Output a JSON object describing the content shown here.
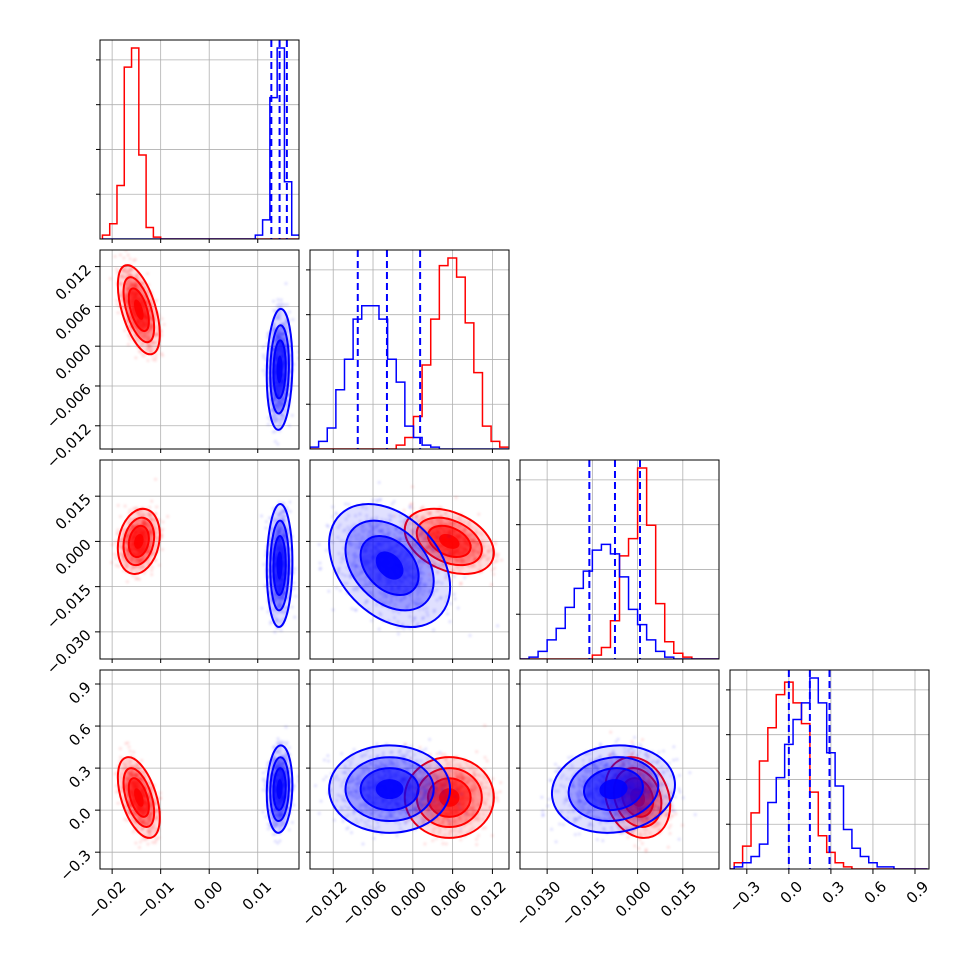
{
  "chart_data": {
    "type": "corner",
    "title": "",
    "grid": true,
    "series": [
      {
        "name": "",
        "color": "#ff0000",
        "means": [
          -0.0145,
          0.0055,
          0.0,
          0.09
        ],
        "sds": [
          0.0018,
          0.0028,
          0.0045,
          0.12
        ],
        "corr": [
          [
            0,
            1,
            -0.55
          ],
          [
            0,
            2,
            0.2
          ],
          [
            0,
            3,
            -0.5
          ],
          [
            1,
            2,
            -0.35
          ],
          [
            2,
            3,
            -0.2
          ]
        ]
      },
      {
        "name": "",
        "color": "#0000ff",
        "means": [
          0.0145,
          -0.0035,
          -0.008,
          0.15
        ],
        "sds": [
          0.0011,
          0.0038,
          0.0085,
          0.13
        ],
        "corr": [
          [
            0,
            1,
            0.1
          ],
          [
            0,
            2,
            0.05
          ],
          [
            0,
            3,
            0.1
          ],
          [
            1,
            2,
            -0.35
          ],
          [
            2,
            3,
            0.1
          ]
        ]
      }
    ],
    "quantiles": {
      "color": "#0000ff",
      "values": [
        [
          0.0128,
          0.0145,
          0.016
        ],
        [
          -0.0083,
          -0.0039,
          0.0011
        ],
        [
          -0.016,
          -0.0075,
          0.0008
        ],
        [
          0.0,
          0.15,
          0.29
        ]
      ]
    },
    "histograms": [
      {
        "edges": [
          -0.022,
          -0.0205,
          -0.019,
          -0.0175,
          -0.016,
          -0.0145,
          -0.013,
          -0.0115,
          -0.01,
          -0.0085,
          -0.007,
          -0.0055,
          -0.004,
          -0.0025,
          -0.001,
          0.0005,
          0.002,
          0.0035,
          0.005,
          0.0065,
          0.008,
          0.0095,
          0.011,
          0.0125,
          0.014,
          0.0155,
          0.017,
          0.0185
        ],
        "counts": [
          [
            0.02,
            0.08,
            0.28,
            0.9,
            1.0,
            0.44,
            0.06,
            0.01,
            0,
            0,
            0,
            0,
            0,
            0,
            0,
            0,
            0,
            0,
            0,
            0,
            0,
            0,
            0,
            0,
            0,
            0,
            0
          ],
          [
            0,
            0,
            0,
            0,
            0,
            0,
            0,
            0,
            0,
            0,
            0,
            0,
            0,
            0,
            0,
            0,
            0,
            0,
            0,
            0,
            0,
            0.02,
            0.1,
            0.74,
            1.0,
            0.3,
            0.02
          ]
        ]
      },
      {
        "edges": [
          -0.0155,
          -0.0142,
          -0.0129,
          -0.0116,
          -0.0103,
          -0.009,
          -0.0077,
          -0.0064,
          -0.0051,
          -0.0038,
          -0.0025,
          -0.0012,
          0.0001,
          0.0014,
          0.0027,
          0.004,
          0.0053,
          0.0066,
          0.0079,
          0.0092,
          0.0105,
          0.0118,
          0.0131,
          0.0144
        ],
        "counts": [
          [
            0,
            0,
            0,
            0,
            0,
            0,
            0,
            0,
            0,
            0,
            0.02,
            0.06,
            0.17,
            0.44,
            0.68,
            0.96,
            1.0,
            0.9,
            0.66,
            0.4,
            0.12,
            0.04,
            0.01
          ],
          [
            0.01,
            0.04,
            0.11,
            0.31,
            0.47,
            0.68,
            0.75,
            0.75,
            0.68,
            0.47,
            0.35,
            0.12,
            0.06,
            0.02,
            0.01,
            0,
            0,
            0,
            0,
            0,
            0,
            0,
            0
          ]
        ]
      },
      {
        "edges": [
          -0.039,
          -0.036,
          -0.033,
          -0.03,
          -0.027,
          -0.024,
          -0.021,
          -0.018,
          -0.015,
          -0.012,
          -0.009,
          -0.006,
          -0.003,
          0.0,
          0.003,
          0.006,
          0.009,
          0.012,
          0.015,
          0.018,
          0.021,
          0.024,
          0.027
        ],
        "counts": [
          [
            0,
            0,
            0,
            0,
            0,
            0,
            0,
            0,
            0.02,
            0.06,
            0.2,
            0.54,
            0.63,
            1.0,
            0.7,
            0.29,
            0.09,
            0.03,
            0.01,
            0,
            0,
            0
          ],
          [
            0,
            0.01,
            0.04,
            0.1,
            0.16,
            0.27,
            0.37,
            0.46,
            0.57,
            0.6,
            0.55,
            0.43,
            0.26,
            0.18,
            0.1,
            0.04,
            0.01,
            0,
            0,
            0,
            0,
            0
          ]
        ]
      },
      {
        "edges": [
          -0.45,
          -0.39,
          -0.33,
          -0.27,
          -0.21,
          -0.15,
          -0.09,
          -0.03,
          0.03,
          0.09,
          0.15,
          0.21,
          0.27,
          0.33,
          0.39,
          0.45,
          0.51,
          0.57,
          0.63,
          0.69,
          0.75,
          0.81,
          0.87,
          0.93,
          0.99
        ],
        "counts": [
          [
            0,
            0.03,
            0.11,
            0.27,
            0.52,
            0.68,
            0.84,
            0.9,
            0.8,
            0.7,
            0.37,
            0.16,
            0.08,
            0.03,
            0.01,
            0,
            0,
            0,
            0,
            0,
            0,
            0,
            0,
            0
          ],
          [
            0,
            0.01,
            0.03,
            0.06,
            0.12,
            0.32,
            0.44,
            0.6,
            0.72,
            0.8,
            0.92,
            0.8,
            0.56,
            0.4,
            0.19,
            0.1,
            0.06,
            0.03,
            0.01,
            0.01,
            0,
            0,
            0,
            0
          ]
        ]
      }
    ],
    "axes": [
      {
        "range": [
          -0.0225,
          0.0185
        ],
        "ticks": [
          -0.02,
          -0.01,
          0.0,
          0.01
        ],
        "tick_labels": [
          "−0.02",
          "−0.01",
          "0.00",
          "0.01"
        ]
      },
      {
        "range": [
          -0.0155,
          0.0145
        ],
        "ticks": [
          -0.012,
          -0.006,
          0.0,
          0.006,
          0.012
        ],
        "tick_labels": [
          "−0.012",
          "−0.006",
          "0.000",
          "0.006",
          "0.012"
        ]
      },
      {
        "range": [
          -0.039,
          0.027
        ],
        "ticks": [
          -0.03,
          -0.015,
          0.0,
          0.015
        ],
        "tick_labels": [
          "−0.030",
          "−0.015",
          "0.000",
          "0.015"
        ]
      },
      {
        "range": [
          -0.42,
          1.0
        ],
        "ticks": [
          -0.3,
          0.0,
          0.3,
          0.6,
          0.9
        ],
        "tick_labels": [
          "−0.3",
          "0.0",
          "0.3",
          "0.6",
          "0.9"
        ]
      }
    ]
  }
}
